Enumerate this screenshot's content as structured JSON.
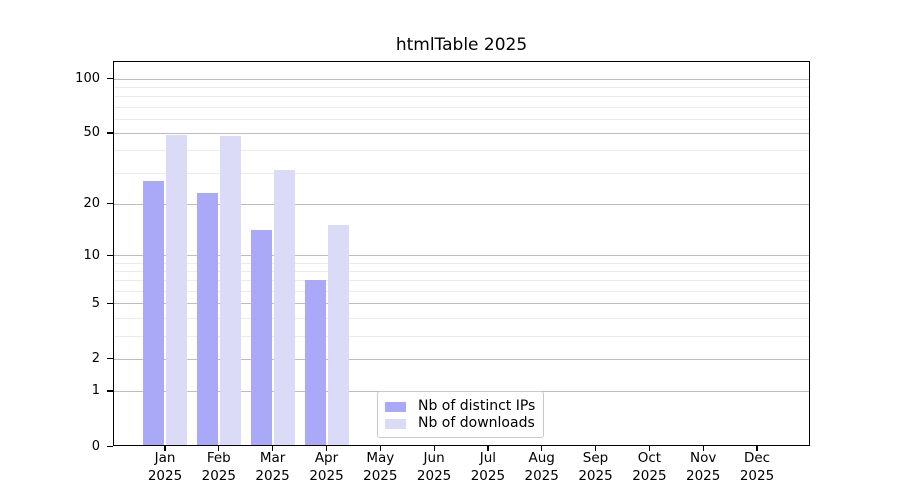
{
  "title": "htmlTable 2025",
  "y_axis": {
    "tick_labels": [
      "0",
      "1",
      "2",
      "5",
      "10",
      "20",
      "50",
      "100"
    ],
    "major_ticks": [
      0,
      1,
      2,
      5,
      10,
      20,
      50,
      100
    ],
    "minor_ticks": [
      3,
      4,
      6,
      7,
      8,
      9,
      30,
      40,
      60,
      70,
      80,
      90
    ],
    "scale": "log1p"
  },
  "x_axis": {
    "months": [
      "Jan",
      "Feb",
      "Mar",
      "Apr",
      "May",
      "Jun",
      "Jul",
      "Aug",
      "Sep",
      "Oct",
      "Nov",
      "Dec"
    ],
    "year": "2025"
  },
  "colors": {
    "distinct_ips": "#a9a9f8",
    "downloads": "#dbdbf8",
    "grid_major": "#bdbdbd",
    "grid_minor": "#ebebeb",
    "axis": "#000000",
    "legend_border": "#c9c9c9"
  },
  "chart_data": {
    "type": "bar",
    "title": "htmlTable 2025",
    "categories": [
      "Jan 2025",
      "Feb 2025",
      "Mar 2025",
      "Apr 2025",
      "May 2025",
      "Jun 2025",
      "Jul 2025",
      "Aug 2025",
      "Sep 2025",
      "Oct 2025",
      "Nov 2025",
      "Dec 2025"
    ],
    "series": [
      {
        "name": "Nb of distinct IPs",
        "color": "#a9a9f8",
        "values": [
          27,
          23,
          14,
          7,
          null,
          null,
          null,
          null,
          null,
          null,
          null,
          null
        ]
      },
      {
        "name": "Nb of downloads",
        "color": "#dbdbf8",
        "values": [
          49,
          48,
          31,
          15,
          null,
          null,
          null,
          null,
          null,
          null,
          null,
          null
        ]
      }
    ],
    "ylim": [
      0,
      125
    ],
    "yscale": "log1p",
    "grid": true,
    "legend_position": "inside-bottom-center"
  }
}
